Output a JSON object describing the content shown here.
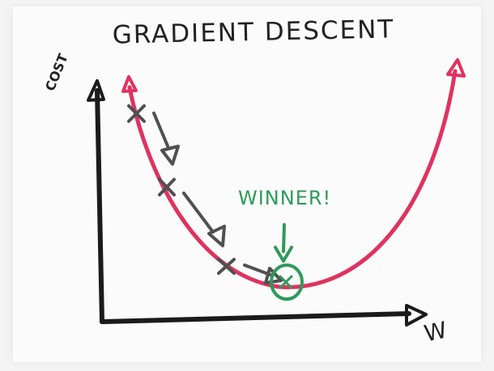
{
  "title": "GRADIENT DESCENT",
  "y_axis_label": "COST",
  "x_axis_label": "W",
  "minimum_label": "WINNER!",
  "colors": {
    "curve": "#e0325f",
    "axes": "#1b1b1b",
    "steps": "#505050",
    "minimum": "#2e9a5a"
  }
}
